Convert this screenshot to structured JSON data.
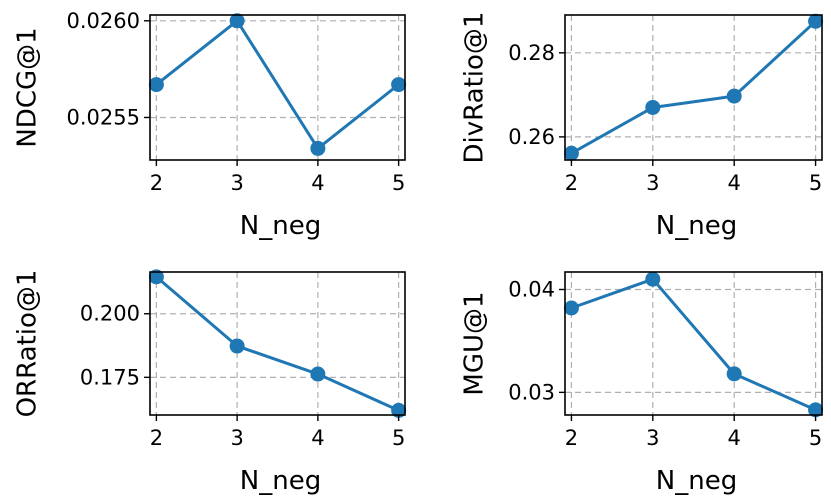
{
  "chart_data": [
    {
      "type": "line",
      "xlabel": "N_neg",
      "ylabel": "NDCG@1",
      "x": [
        2,
        3,
        4,
        5
      ],
      "series": [
        {
          "values": [
            0.02567,
            0.026,
            0.02534,
            0.02567
          ]
        }
      ],
      "ylim": [
        0.02528,
        0.02603
      ],
      "yticks": [
        0.0255,
        0.026
      ],
      "ytick_labels": [
        "0.0255",
        "0.0260"
      ],
      "xticks": [
        2,
        3,
        4,
        5
      ],
      "xtick_labels": [
        "2",
        "3",
        "4",
        "5"
      ],
      "grid": true,
      "color": "#1f77b4"
    },
    {
      "type": "line",
      "xlabel": "N_neg",
      "ylabel": "DivRatio@1",
      "x": [
        2,
        3,
        4,
        5
      ],
      "series": [
        {
          "values": [
            0.2561,
            0.267,
            0.2697,
            0.2875
          ]
        }
      ],
      "ylim": [
        0.2545,
        0.289
      ],
      "yticks": [
        0.26,
        0.28
      ],
      "ytick_labels": [
        "0.26",
        "0.28"
      ],
      "xticks": [
        2,
        3,
        4,
        5
      ],
      "xtick_labels": [
        "2",
        "3",
        "4",
        "5"
      ],
      "grid": true,
      "color": "#1f77b4"
    },
    {
      "type": "line",
      "xlabel": "N_neg",
      "ylabel": "ORRatio@1",
      "x": [
        2,
        3,
        4,
        5
      ],
      "series": [
        {
          "values": [
            0.2145,
            0.1873,
            0.1763,
            0.162
          ]
        }
      ],
      "ylim": [
        0.1602,
        0.2164
      ],
      "yticks": [
        0.175,
        0.2
      ],
      "ytick_labels": [
        "0.175",
        "0.200"
      ],
      "xticks": [
        2,
        3,
        4,
        5
      ],
      "xtick_labels": [
        "2",
        "3",
        "4",
        "5"
      ],
      "grid": true,
      "color": "#1f77b4"
    },
    {
      "type": "line",
      "xlabel": "N_neg",
      "ylabel": "MGU@1",
      "x": [
        2,
        3,
        4,
        5
      ],
      "series": [
        {
          "values": [
            0.0382,
            0.041,
            0.0318,
            0.0283
          ]
        }
      ],
      "ylim": [
        0.0278,
        0.0417
      ],
      "yticks": [
        0.03,
        0.04
      ],
      "ytick_labels": [
        "0.03",
        "0.04"
      ],
      "xticks": [
        2,
        3,
        4,
        5
      ],
      "xtick_labels": [
        "2",
        "3",
        "4",
        "5"
      ],
      "grid": true,
      "color": "#1f77b4"
    }
  ]
}
